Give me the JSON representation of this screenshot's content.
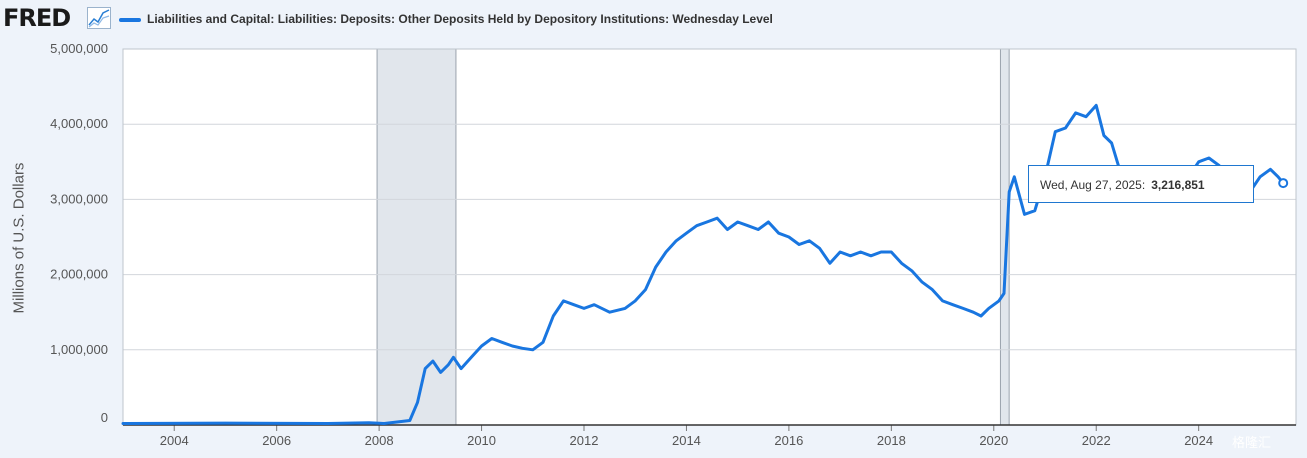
{
  "brand": {
    "logo_text": "FRED"
  },
  "colors": {
    "series": "#1976e0",
    "recession": "#e1e6ec",
    "plot_bg": "#ffffff",
    "page_bg": "#eef3fa"
  },
  "legend": {
    "label": "Liabilities and Capital: Liabilities: Deposits: Other Deposits Held by Depository Institutions: Wednesday Level"
  },
  "tooltip": {
    "date": "Wed, Aug 27, 2025:",
    "value": "3,216,851"
  },
  "watermark": {
    "text": "格隆汇"
  },
  "chart_data": {
    "type": "line",
    "title": "",
    "ylabel": "Millions of U.S. Dollars",
    "xlabel": "",
    "xlim": [
      2003.0,
      2025.9
    ],
    "ylim": [
      0,
      5000000
    ],
    "y_ticks": [
      0,
      1000000,
      2000000,
      3000000,
      4000000,
      5000000
    ],
    "y_tick_labels": [
      "0",
      "1,000,000",
      "2,000,000",
      "3,000,000",
      "4,000,000",
      "5,000,000"
    ],
    "x_ticks": [
      2004,
      2006,
      2008,
      2010,
      2012,
      2014,
      2016,
      2018,
      2020,
      2022,
      2024
    ],
    "x_tick_labels": [
      "2004",
      "2006",
      "2008",
      "2010",
      "2012",
      "2014",
      "2016",
      "2018",
      "2020",
      "2022",
      "2024"
    ],
    "grid": "horizontal",
    "recessions": [
      [
        2007.96,
        2009.5
      ],
      [
        2020.13,
        2020.3
      ]
    ],
    "series": [
      {
        "name": "Liabilities and Capital: Liabilities: Deposits: Other Deposits Held by Depository Institutions: Wednesday Level",
        "x": [
          2003.0,
          2005.0,
          2007.0,
          2007.8,
          2008.1,
          2008.6,
          2008.75,
          2008.9,
          2009.05,
          2009.2,
          2009.35,
          2009.45,
          2009.6,
          2009.8,
          2010.0,
          2010.2,
          2010.4,
          2010.6,
          2010.8,
          2011.0,
          2011.2,
          2011.4,
          2011.6,
          2011.8,
          2012.0,
          2012.2,
          2012.5,
          2012.8,
          2013.0,
          2013.2,
          2013.4,
          2013.6,
          2013.8,
          2014.0,
          2014.2,
          2014.4,
          2014.6,
          2014.8,
          2015.0,
          2015.2,
          2015.4,
          2015.6,
          2015.8,
          2016.0,
          2016.2,
          2016.4,
          2016.6,
          2016.8,
          2017.0,
          2017.2,
          2017.4,
          2017.6,
          2017.8,
          2018.0,
          2018.2,
          2018.4,
          2018.6,
          2018.8,
          2019.0,
          2019.2,
          2019.4,
          2019.6,
          2019.75,
          2019.9,
          2020.1,
          2020.2,
          2020.3,
          2020.4,
          2020.6,
          2020.8,
          2021.0,
          2021.2,
          2021.4,
          2021.6,
          2021.8,
          2022.0,
          2022.15,
          2022.3,
          2022.5,
          2022.7,
          2022.9,
          2023.1,
          2023.3,
          2023.5,
          2023.7,
          2023.9,
          2024.0,
          2024.2,
          2024.4,
          2024.6,
          2024.8,
          2025.0,
          2025.2,
          2025.4,
          2025.55,
          2025.65
        ],
        "values": [
          20000,
          25000,
          20000,
          30000,
          20000,
          60000,
          300000,
          750000,
          850000,
          700000,
          800000,
          900000,
          750000,
          900000,
          1050000,
          1150000,
          1100000,
          1050000,
          1020000,
          1000000,
          1100000,
          1450000,
          1650000,
          1600000,
          1550000,
          1600000,
          1500000,
          1550000,
          1650000,
          1800000,
          2100000,
          2300000,
          2450000,
          2550000,
          2650000,
          2700000,
          2750000,
          2600000,
          2700000,
          2650000,
          2600000,
          2700000,
          2550000,
          2500000,
          2400000,
          2450000,
          2350000,
          2150000,
          2300000,
          2250000,
          2300000,
          2250000,
          2300000,
          2300000,
          2150000,
          2050000,
          1900000,
          1800000,
          1650000,
          1600000,
          1550000,
          1500000,
          1450000,
          1550000,
          1650000,
          1750000,
          3100000,
          3300000,
          2800000,
          2850000,
          3300000,
          3900000,
          3950000,
          4150000,
          4100000,
          4250000,
          3850000,
          3750000,
          3300000,
          3200000,
          3050000,
          3050000,
          3150000,
          3300000,
          3350000,
          3400000,
          3500000,
          3550000,
          3450000,
          3300000,
          3150000,
          3100000,
          3300000,
          3400000,
          3300000,
          3216851
        ]
      }
    ]
  }
}
